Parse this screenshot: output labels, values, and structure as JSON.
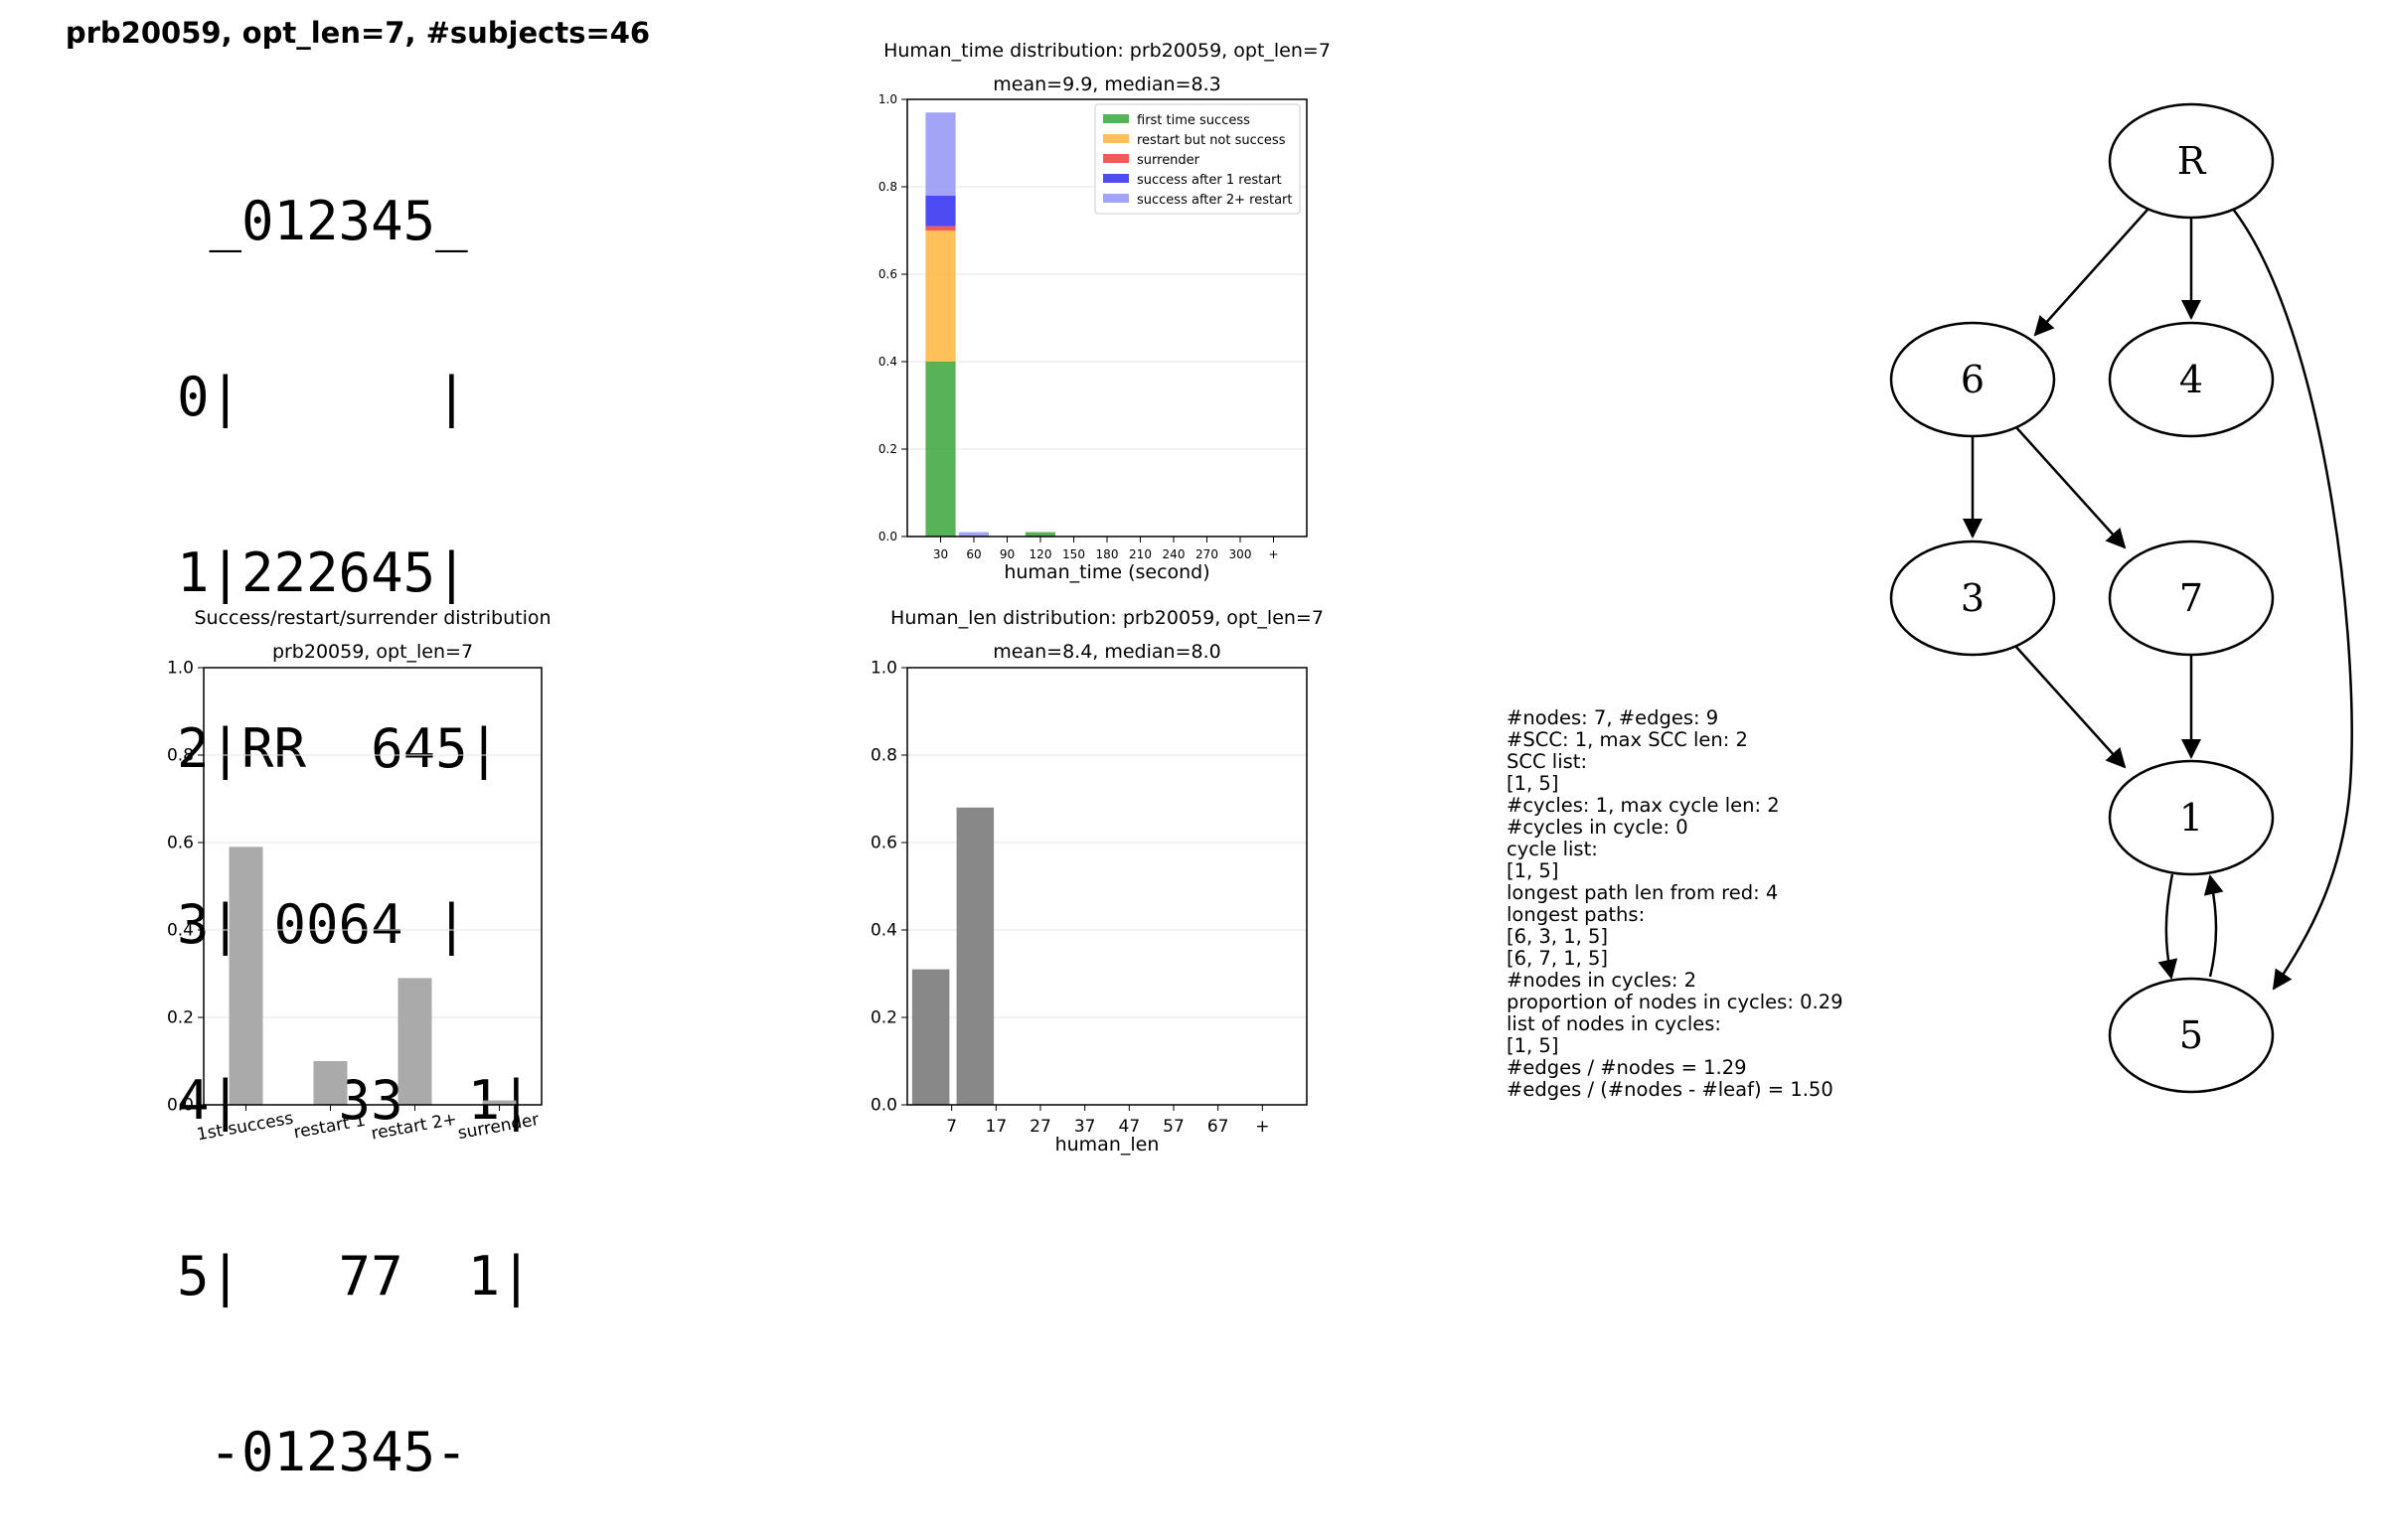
{
  "suptitle": "prb20059, opt_len=7, #subjects=46",
  "board": {
    "lines": [
      " _012345_",
      "0|      |",
      "1|222645|",
      "2|RR  645|",
      "3| 0064 |",
      "4|   33  1|",
      "5|   77  1|",
      " -012345-"
    ]
  },
  "info": {
    "lines": [
      "#nodes: 7, #edges: 9",
      "#SCC: 1, max SCC len: 2",
      "SCC list:",
      "[1, 5]",
      "#cycles: 1, max cycle len: 2",
      "#cycles in cycle: 0",
      "cycle list:",
      "[1, 5]",
      "longest path len from red: 4",
      "longest paths:",
      "[6, 3, 1, 5]",
      "[6, 7, 1, 5]",
      "#nodes in cycles: 2",
      "proportion of nodes in cycles: 0.29",
      "list of nodes in cycles:",
      "[1, 5]",
      "#edges / #nodes = 1.29",
      "#edges / (#nodes - #leaf) = 1.50"
    ]
  },
  "graph": {
    "nodes": [
      "R",
      "6",
      "4",
      "3",
      "7",
      "1",
      "5"
    ],
    "edges": [
      [
        "R",
        "6"
      ],
      [
        "R",
        "4"
      ],
      [
        "R",
        "5"
      ],
      [
        "6",
        "3"
      ],
      [
        "6",
        "7"
      ],
      [
        "3",
        "1"
      ],
      [
        "7",
        "1"
      ],
      [
        "1",
        "5"
      ],
      [
        "5",
        "1"
      ]
    ]
  },
  "chart_data": [
    {
      "type": "bar",
      "stacked": true,
      "title": "Human_time distribution: prb20059, opt_len=7",
      "subtitle": "mean=9.9, median=8.3",
      "xlabel": "human_time (second)",
      "ylabel": "",
      "categories": [
        "30",
        "60",
        "90",
        "120",
        "150",
        "180",
        "210",
        "240",
        "270",
        "300",
        "+"
      ],
      "yticks": [
        "0.0",
        "0.2",
        "0.4",
        "0.6",
        "0.8",
        "1.0"
      ],
      "ylim": [
        0,
        1.0
      ],
      "grid": true,
      "legend_position": "top-right",
      "series": [
        {
          "name": "first time success",
          "color": "#2ca02c",
          "values": [
            0.4,
            0,
            0,
            0.01,
            0,
            0,
            0,
            0,
            0,
            0,
            0
          ]
        },
        {
          "name": "restart but not success",
          "color": "#ffb031",
          "values": [
            0.3,
            0,
            0,
            0,
            0,
            0,
            0,
            0,
            0,
            0,
            0
          ]
        },
        {
          "name": "surrender",
          "color": "#f03030",
          "values": [
            0.01,
            0,
            0,
            0,
            0,
            0,
            0,
            0,
            0,
            0,
            0
          ]
        },
        {
          "name": "success after 1 restart",
          "color": "#1f1fef",
          "values": [
            0.07,
            0,
            0,
            0,
            0,
            0,
            0,
            0,
            0,
            0,
            0
          ]
        },
        {
          "name": "success after 2+ restart",
          "color": "#8d8df5",
          "values": [
            0.19,
            0.01,
            0,
            0,
            0,
            0,
            0,
            0,
            0,
            0,
            0
          ]
        }
      ]
    },
    {
      "type": "bar",
      "title": "Success/restart/surrender distribution",
      "subtitle": "prb20059, opt_len=7",
      "xlabel": "",
      "ylabel": "",
      "categories": [
        "1st success",
        "restart 1",
        "restart 2+",
        "surrender"
      ],
      "values": [
        0.59,
        0.1,
        0.29,
        0.01
      ],
      "yticks": [
        "0.0",
        "0.2",
        "0.4",
        "0.6",
        "0.8",
        "1.0"
      ],
      "ylim": [
        0,
        1.0
      ],
      "grid": true,
      "color": "#aaaaaa"
    },
    {
      "type": "bar",
      "title": "Human_len distribution: prb20059, opt_len=7",
      "subtitle": "mean=8.4, median=8.0",
      "xlabel": "human_len",
      "ylabel": "",
      "categories": [
        "7",
        "17",
        "27",
        "37",
        "47",
        "57",
        "67",
        "+"
      ],
      "values": [
        0.31,
        0.68,
        0,
        0,
        0,
        0,
        0,
        0
      ],
      "yticks": [
        "0.0",
        "0.2",
        "0.4",
        "0.6",
        "0.8",
        "1.0"
      ],
      "ylim": [
        0,
        1.0
      ],
      "grid": true,
      "color": "#888888"
    }
  ]
}
